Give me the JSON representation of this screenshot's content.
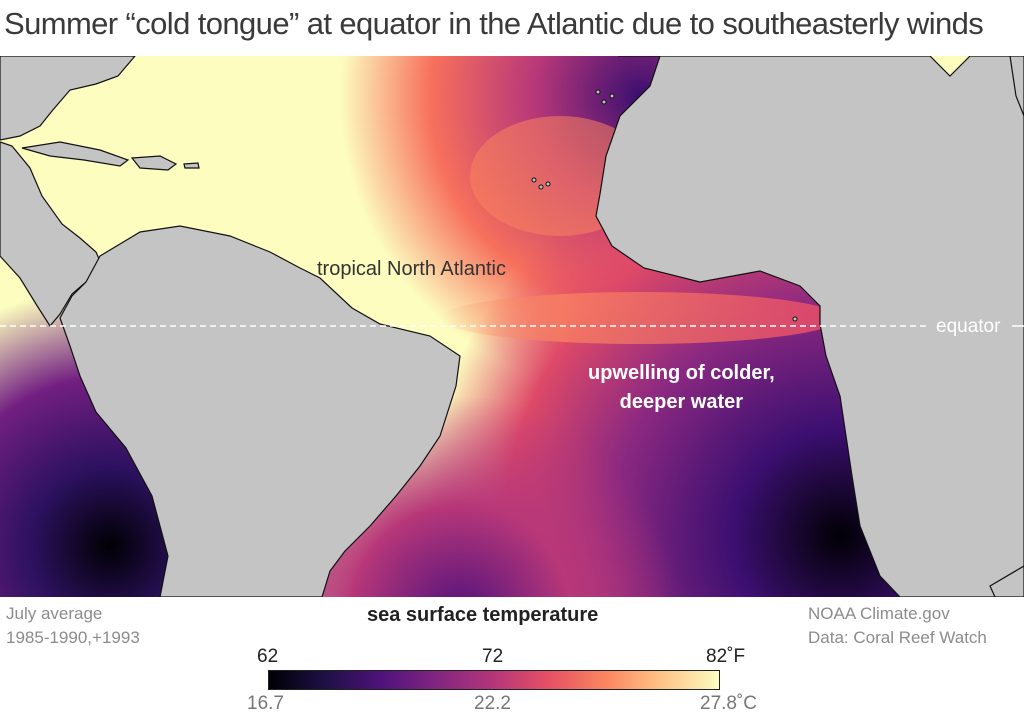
{
  "title": "Summer “cold tongue” at equator in the Atlantic due to southeasterly winds",
  "map": {
    "labels": {
      "tropical_north_atlantic": "tropical North Atlantic",
      "upwelling_line1": "upwelling of colder,",
      "upwelling_line2": "deeper water",
      "equator": "equator"
    },
    "colors": {
      "land": "#c4c4c4",
      "coastline": "#111111",
      "warm": "#fcfdbf",
      "mid": "#f2605c",
      "cool": "#5a1a7a",
      "cold": "#000004"
    }
  },
  "footer": {
    "left_line1": "July average",
    "left_line2": "1985-1990,+1993",
    "right_line1": "NOAA Climate.gov",
    "right_line2": "Data:  Coral Reef Watch"
  },
  "colorbar": {
    "title": "sea surface temperature",
    "fahrenheit_ticks": [
      "62",
      "72",
      "82˚F"
    ],
    "celsius_ticks": [
      "16.7",
      "22.2",
      "27.8˚C"
    ],
    "colormap": "magma"
  }
}
